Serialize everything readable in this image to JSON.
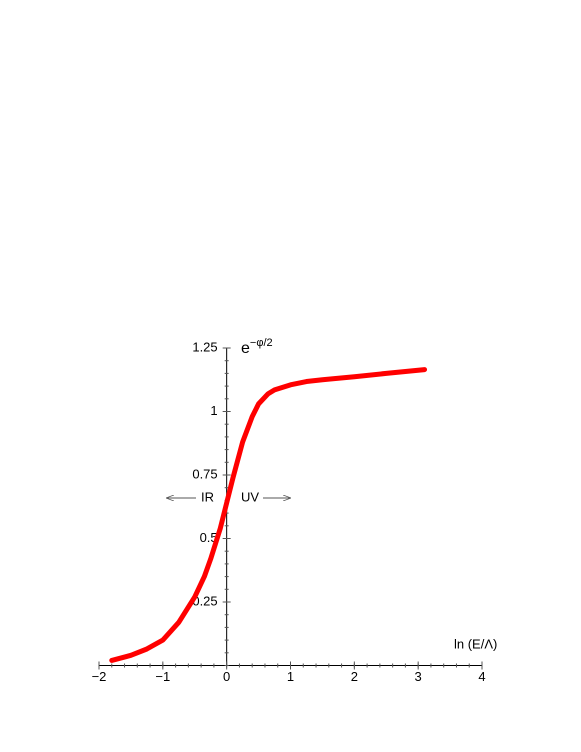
{
  "chart_data": {
    "type": "line",
    "xlabel": "ln (E/Λ)",
    "ylabel": {
      "base": "e",
      "exponent": "−φ/2"
    },
    "annotations": {
      "left": "IR",
      "right": "UV"
    },
    "x": [
      -1.8,
      -1.5,
      -1.25,
      -1,
      -0.75,
      -0.5,
      -0.35,
      -0.25,
      -0.1,
      0,
      0.1,
      0.25,
      0.4,
      0.5,
      0.65,
      0.75,
      1,
      1.25,
      1.5,
      2,
      2.5,
      3.1
    ],
    "series": [
      {
        "name": "e^(−φ/2)",
        "color": "#ff0000",
        "values": [
          0.02,
          0.04,
          0.065,
          0.1,
          0.17,
          0.27,
          0.35,
          0.42,
          0.54,
          0.64,
          0.74,
          0.88,
          0.98,
          1.03,
          1.07,
          1.085,
          1.105,
          1.118,
          1.125,
          1.137,
          1.15,
          1.165
        ]
      }
    ],
    "xlim": [
      -2,
      4
    ],
    "ylim": [
      0,
      1.25
    ],
    "xticks": [
      {
        "value": -2,
        "label": "−2"
      },
      {
        "value": -1,
        "label": "−1"
      },
      0,
      1,
      2,
      3,
      4
    ],
    "yticks": [
      0.25,
      0.5,
      0.75,
      1,
      1.25
    ]
  }
}
